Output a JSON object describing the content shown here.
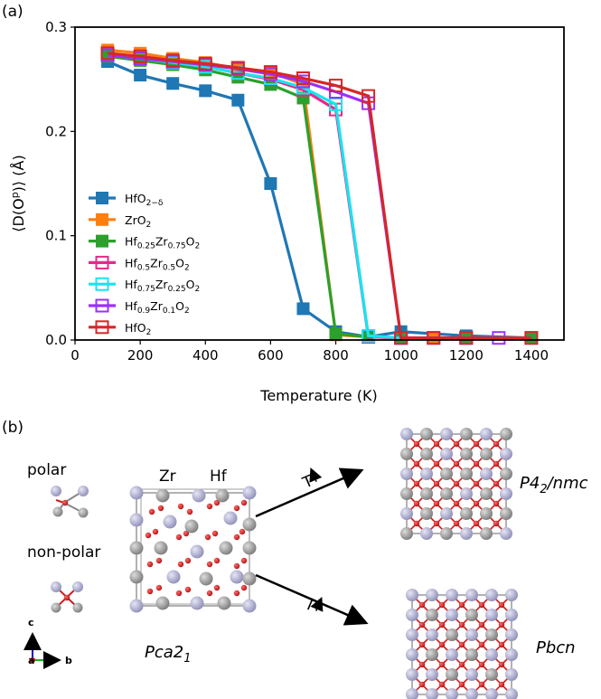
{
  "figure": {
    "panel_a_label": "(a)",
    "panel_b_label": "(b)"
  },
  "chart_data": {
    "type": "line",
    "title": "",
    "xlabel": "Temperature (K)",
    "ylabel": "⟨D(O^p)⟩ (Å)",
    "xlim": [
      0,
      1500
    ],
    "ylim": [
      0,
      0.3
    ],
    "xticks": [
      0,
      200,
      400,
      600,
      800,
      1000,
      1200,
      1400
    ],
    "xtick_labels": [
      "0",
      "200",
      "400",
      "600",
      "800",
      "1000",
      "1200",
      "1400"
    ],
    "yticks": [
      0.0,
      0.1,
      0.2,
      0.3
    ],
    "ytick_labels": [
      "0.0",
      "0.1",
      "0.2",
      "0.3"
    ],
    "grid": false,
    "legend_position": "center-left",
    "series": [
      {
        "name": "HfO2−δ",
        "color": "#1f77b4",
        "marker": "square-filled",
        "x": [
          100,
          200,
          300,
          400,
          500,
          600,
          700,
          800,
          900,
          1000,
          1200,
          1400
        ],
        "y": [
          0.267,
          0.254,
          0.246,
          0.239,
          0.23,
          0.15,
          0.03,
          0.008,
          0.003,
          0.008,
          0.004,
          0.002
        ]
      },
      {
        "name": "ZrO2",
        "color": "#ff7f0e",
        "marker": "square-filled",
        "x": [
          100,
          200,
          300,
          400,
          500,
          600,
          700,
          800,
          900,
          1000,
          1100,
          1200,
          1400
        ],
        "y": [
          0.278,
          0.275,
          0.27,
          0.266,
          0.26,
          0.257,
          0.245,
          0.005,
          0.003,
          0.002,
          0.002,
          0.002,
          0.002
        ]
      },
      {
        "name": "Hf0.25Zr0.75O2",
        "color": "#2ca02c",
        "marker": "square-filled",
        "x": [
          100,
          200,
          300,
          400,
          500,
          600,
          700,
          800,
          900,
          1000,
          1200,
          1400
        ],
        "y": [
          0.272,
          0.268,
          0.264,
          0.259,
          0.252,
          0.245,
          0.232,
          0.006,
          0.003,
          0.002,
          0.002,
          0.002
        ]
      },
      {
        "name": "Hf0.5Zr0.5O2",
        "color": "#e7298a",
        "marker": "square-open",
        "x": [
          100,
          200,
          300,
          400,
          500,
          600,
          700,
          800,
          900,
          1000,
          1200,
          1400
        ],
        "y": [
          0.274,
          0.27,
          0.266,
          0.262,
          0.256,
          0.25,
          0.24,
          0.221,
          0.003,
          0.002,
          0.002,
          0.002
        ]
      },
      {
        "name": "Hf0.75Zr0.25O2",
        "color": "#17e5f0",
        "marker": "square-open",
        "x": [
          100,
          200,
          300,
          400,
          500,
          600,
          700,
          800,
          900,
          1000,
          1200,
          1400
        ],
        "y": [
          0.273,
          0.27,
          0.266,
          0.262,
          0.256,
          0.251,
          0.242,
          0.226,
          0.004,
          0.002,
          0.002,
          0.002
        ]
      },
      {
        "name": "Hf0.9Zr0.1O2",
        "color": "#9b30ff",
        "marker": "square-open",
        "x": [
          100,
          200,
          300,
          400,
          500,
          600,
          700,
          800,
          900,
          1000,
          1100,
          1200,
          1300
        ],
        "y": [
          0.273,
          0.27,
          0.267,
          0.264,
          0.26,
          0.255,
          0.248,
          0.238,
          0.227,
          0.002,
          0.002,
          0.002,
          0.002
        ]
      },
      {
        "name": "HfO2",
        "color": "#d62728",
        "marker": "square-open",
        "x": [
          100,
          200,
          300,
          400,
          500,
          600,
          700,
          800,
          900,
          1000,
          1100,
          1200,
          1400
        ],
        "y": [
          0.275,
          0.272,
          0.268,
          0.265,
          0.261,
          0.257,
          0.251,
          0.244,
          0.234,
          0.002,
          0.002,
          0.002,
          0.002
        ]
      }
    ],
    "legend": [
      {
        "base": "HfO",
        "sub": "2−δ"
      },
      {
        "base": "ZrO",
        "sub": "2"
      },
      {
        "parts": [
          "Hf",
          "0.25",
          "Zr",
          "0.75",
          "O",
          "2"
        ]
      },
      {
        "parts": [
          "Hf",
          "0.5",
          "Zr",
          "0.5",
          "O",
          "2"
        ]
      },
      {
        "parts": [
          "Hf",
          "0.75",
          "Zr",
          "0.25",
          "O",
          "2"
        ]
      },
      {
        "parts": [
          "Hf",
          "0.9",
          "Zr",
          "0.1",
          "O",
          "2"
        ]
      },
      {
        "base": "HfO",
        "sub": "2"
      }
    ]
  },
  "structures": {
    "polar_label": "polar",
    "nonpolar_label": "non-polar",
    "zr_label": "Zr",
    "hf_label": "Hf",
    "axis_c": "c",
    "axis_b": "b",
    "axis_a": "a",
    "arrow_label": "T",
    "phase_start_base": "Pca2",
    "phase_start_sub": "1",
    "phase_top_base": "P4",
    "phase_top_sub": "2",
    "phase_top_rest": "/nmc",
    "phase_bottom": "Pbcn",
    "zr_color": "#a8a8cc",
    "hf_color": "#9a9a9a",
    "o_color": "#cc1f1f",
    "polar_text_color": "#e8141b"
  }
}
